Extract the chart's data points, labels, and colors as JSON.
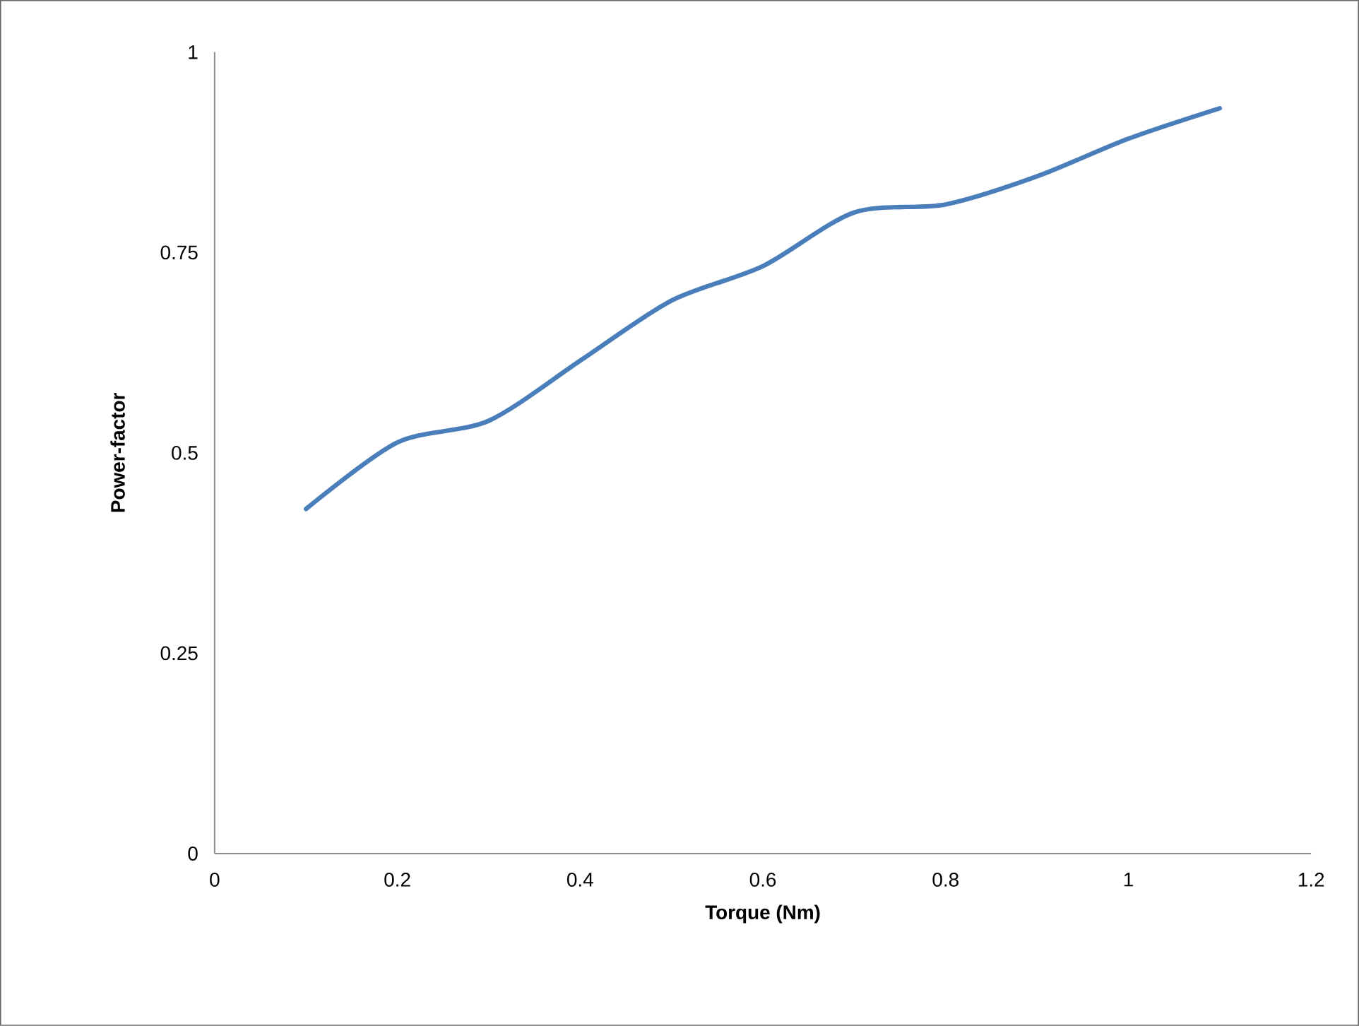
{
  "chart_data": {
    "type": "line",
    "xlabel": "Torque (Nm)",
    "ylabel": "Power-factor",
    "x": [
      0.1,
      0.2,
      0.3,
      0.4,
      0.5,
      0.6,
      0.7,
      0.8,
      0.9,
      1.0,
      1.1
    ],
    "series": [
      {
        "color": "#4a7ebb",
        "values": [
          0.43,
          0.513,
          0.54,
          0.615,
          0.69,
          0.733,
          0.8,
          0.81,
          0.845,
          0.892,
          0.93
        ]
      }
    ],
    "xlim": [
      0,
      1.2
    ],
    "ylim": [
      0,
      1
    ],
    "xticks": [
      0,
      0.2,
      0.4,
      0.6,
      0.8,
      1,
      1.2
    ],
    "yticks": [
      0,
      {
        "value": 0.25,
        "label": "0.25"
      },
      {
        "value": 0.5,
        "label": "0.5"
      },
      {
        "value": 0.75,
        "label": "0.75"
      },
      1
    ],
    "marker": "none",
    "line_style": "solid"
  }
}
